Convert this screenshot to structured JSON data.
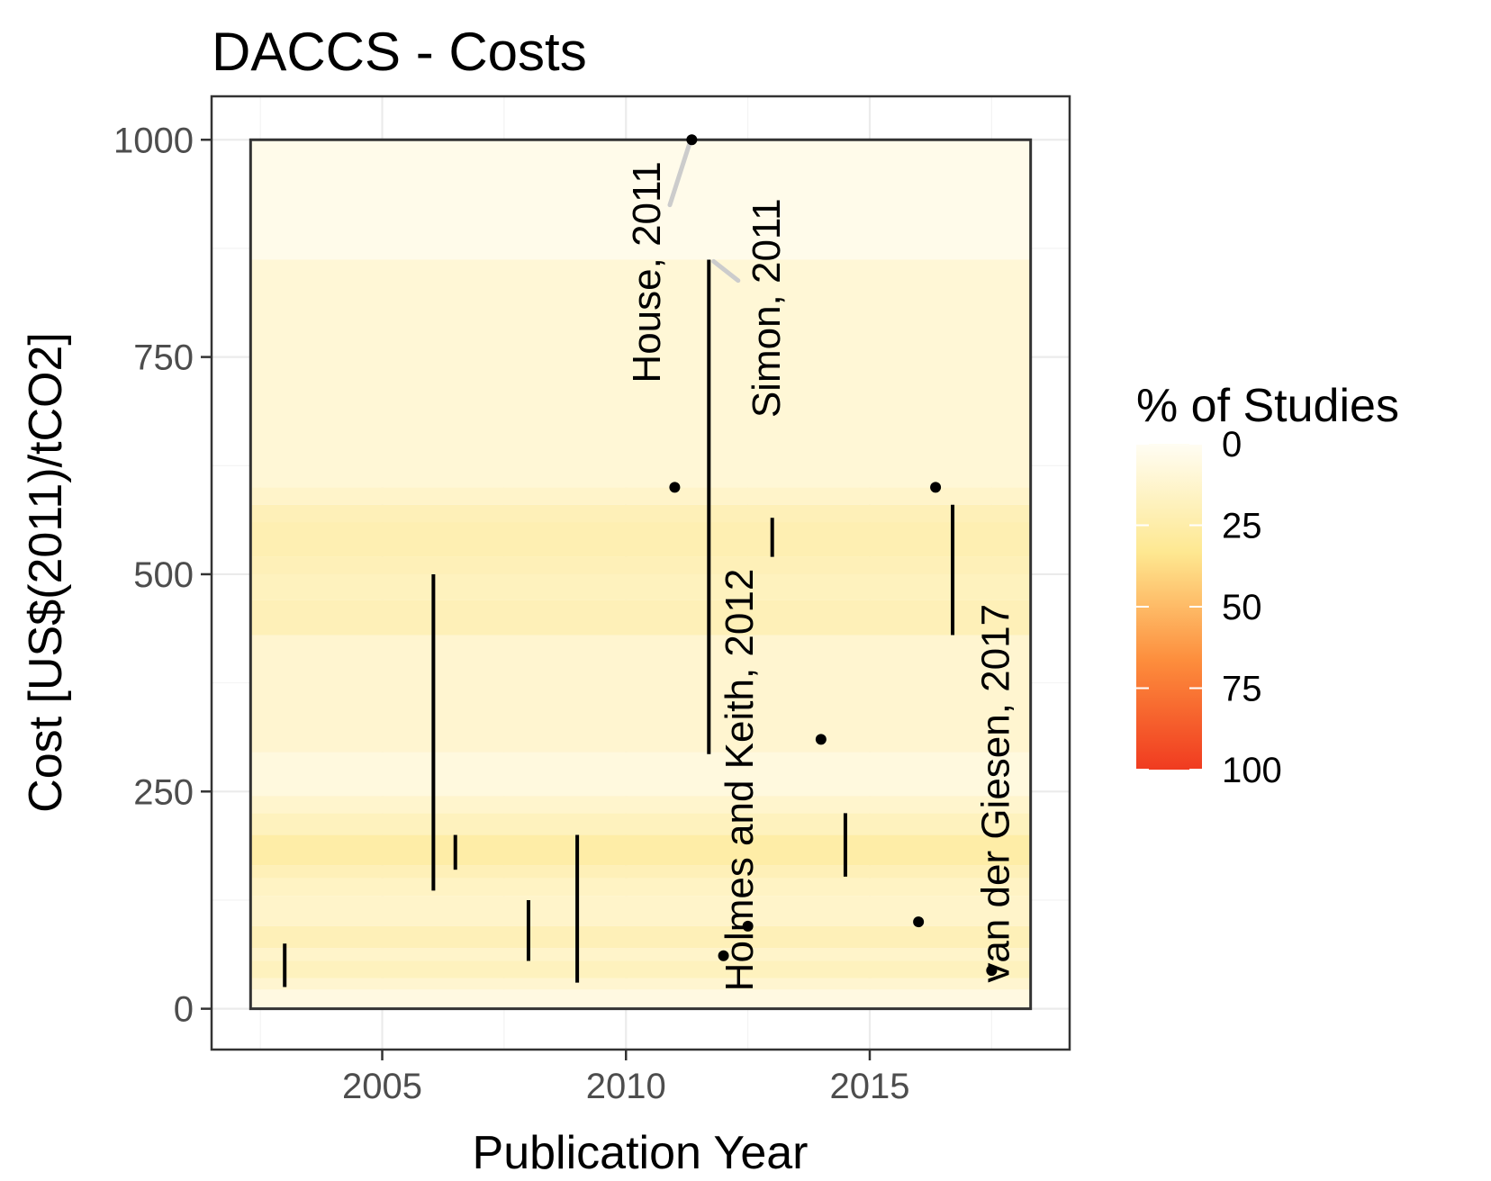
{
  "chart_data": {
    "type": "scatter",
    "title": "DACCS - Costs",
    "xlabel": "Publication Year",
    "ylabel": "Cost [US$(2011)/tCO2]",
    "xlim": [
      2001.5,
      2019.1
    ],
    "ylim": [
      -47,
      1050
    ],
    "x_ticks": [
      2005,
      2010,
      2015
    ],
    "y_ticks": [
      0,
      250,
      500,
      750,
      1000
    ],
    "grid": true,
    "panel_box": {
      "x": [
        2002.3,
        2018.3
      ],
      "y": [
        0,
        1000
      ]
    },
    "heat_bands": [
      {
        "y0": 0,
        "y1": 22,
        "pct": 6
      },
      {
        "y0": 22,
        "y1": 35,
        "pct": 12
      },
      {
        "y0": 35,
        "y1": 55,
        "pct": 18
      },
      {
        "y0": 55,
        "y1": 70,
        "pct": 14
      },
      {
        "y0": 70,
        "y1": 95,
        "pct": 20
      },
      {
        "y0": 95,
        "y1": 130,
        "pct": 14
      },
      {
        "y0": 130,
        "y1": 150,
        "pct": 16
      },
      {
        "y0": 150,
        "y1": 165,
        "pct": 20
      },
      {
        "y0": 165,
        "y1": 200,
        "pct": 26
      },
      {
        "y0": 200,
        "y1": 225,
        "pct": 18
      },
      {
        "y0": 225,
        "y1": 245,
        "pct": 13
      },
      {
        "y0": 245,
        "y1": 295,
        "pct": 7
      },
      {
        "y0": 295,
        "y1": 430,
        "pct": 12
      },
      {
        "y0": 430,
        "y1": 470,
        "pct": 20
      },
      {
        "y0": 470,
        "y1": 500,
        "pct": 18
      },
      {
        "y0": 500,
        "y1": 520,
        "pct": 20
      },
      {
        "y0": 520,
        "y1": 560,
        "pct": 22
      },
      {
        "y0": 560,
        "y1": 580,
        "pct": 20
      },
      {
        "y0": 580,
        "y1": 600,
        "pct": 14
      },
      {
        "y0": 600,
        "y1": 862,
        "pct": 10
      },
      {
        "y0": 862,
        "y1": 1000,
        "pct": 3
      }
    ],
    "ranges": [
      {
        "x": 2003.0,
        "low": 25,
        "high": 75
      },
      {
        "x": 2006.05,
        "low": 136,
        "high": 500
      },
      {
        "x": 2006.5,
        "low": 160,
        "high": 200
      },
      {
        "x": 2008.0,
        "low": 55,
        "high": 125
      },
      {
        "x": 2009.0,
        "low": 30,
        "high": 200
      },
      {
        "x": 2011.7,
        "low": 293,
        "high": 862
      },
      {
        "x": 2013.0,
        "low": 520,
        "high": 565
      },
      {
        "x": 2014.5,
        "low": 152,
        "high": 225
      },
      {
        "x": 2016.7,
        "low": 430,
        "high": 580
      }
    ],
    "points": [
      {
        "x": 2011.0,
        "y": 600
      },
      {
        "x": 2011.35,
        "y": 1000
      },
      {
        "x": 2012.0,
        "y": 61
      },
      {
        "x": 2012.5,
        "y": 95
      },
      {
        "x": 2014.0,
        "y": 310
      },
      {
        "x": 2016.0,
        "y": 100
      },
      {
        "x": 2016.35,
        "y": 600
      },
      {
        "x": 2017.5,
        "y": 44
      }
    ],
    "annotations": [
      {
        "text": "House, 2011",
        "x": 2010.7,
        "y": 720
      },
      {
        "text": "Simon, 2011",
        "x": 2013.15,
        "y": 680
      },
      {
        "text": "Holmes and Keith, 2012",
        "x": 2012.6,
        "y": 20
      },
      {
        "text": "van der Giesen, 2017",
        "x": 2017.85,
        "y": 30
      }
    ],
    "leader_lines": [
      {
        "x1": 2010.9,
        "y1": 925,
        "x2": 2011.3,
        "y2": 995
      },
      {
        "x1": 2011.8,
        "y1": 860,
        "x2": 2012.3,
        "y2": 838
      }
    ],
    "legend": {
      "title": "% of Studies",
      "position": "right",
      "ticks": [
        0,
        25,
        50,
        75,
        100
      ],
      "colors": [
        "#fffdf3",
        "#fee891",
        "#fd8d3c",
        "#f03b20"
      ]
    }
  }
}
